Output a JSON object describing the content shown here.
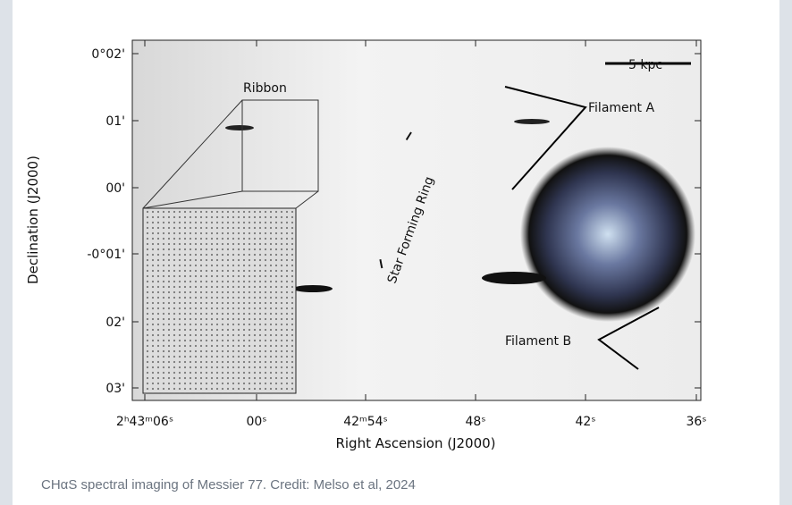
{
  "figure": {
    "x_axis": {
      "label": "Right Ascension (J2000)",
      "ticks": [
        "2ʰ43ᵐ06ˢ",
        "00ˢ",
        "42ᵐ54ˢ",
        "48ˢ",
        "42ˢ",
        "36ˢ"
      ]
    },
    "y_axis": {
      "label": "Declination (J2000)",
      "ticks": [
        "0°02'",
        "01'",
        "00'",
        "-0°01'",
        "02'",
        "03'"
      ]
    },
    "annotations": {
      "scale_bar": "5 kpc",
      "ribbon": "Ribbon",
      "filament_a": "Filament A",
      "filament_b": "Filament B",
      "ring": "Star Forming Ring"
    }
  },
  "caption": "CHαS spectral imaging of Messier 77. Credit: Melso et al, 2024"
}
